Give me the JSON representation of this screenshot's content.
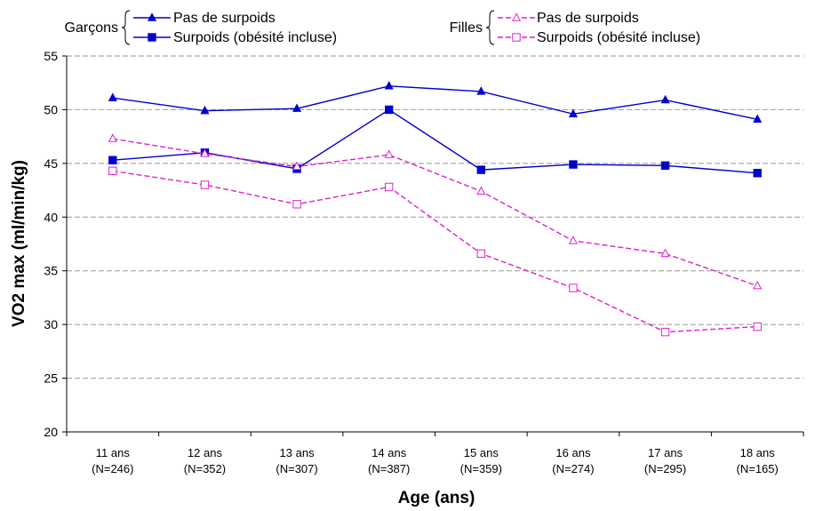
{
  "chart_data": {
    "type": "line",
    "title": "",
    "xlabel": "Age (ans)",
    "ylabel": "VO2 max (ml/min/kg)",
    "ylim": [
      20,
      55
    ],
    "yticks": [
      20,
      25,
      30,
      35,
      40,
      45,
      50,
      55
    ],
    "grid": true,
    "categories": [
      {
        "age": "11 ans",
        "n": "(N=246)"
      },
      {
        "age": "12 ans",
        "n": "(N=352)"
      },
      {
        "age": "13 ans",
        "n": "(N=307)"
      },
      {
        "age": "14 ans",
        "n": "(N=387)"
      },
      {
        "age": "15 ans",
        "n": "(N=359)"
      },
      {
        "age": "16 ans",
        "n": "(N=274)"
      },
      {
        "age": "17 ans",
        "n": "(N=295)"
      },
      {
        "age": "18 ans",
        "n": "(N=165)"
      }
    ],
    "legend_groups": [
      {
        "group": "Garçons",
        "items": [
          "Pas de surpoids",
          "Surpoids (obésité incluse)"
        ]
      },
      {
        "group": "Filles",
        "items": [
          "Pas de surpoids",
          "Surpoids (obésité incluse)"
        ]
      }
    ],
    "series": [
      {
        "name": "Pas de surpoids",
        "group": "Garçons",
        "color": "#0000cc",
        "dash": "solid",
        "marker": "triangle-filled",
        "values": [
          51.1,
          49.9,
          50.1,
          52.2,
          51.7,
          49.6,
          50.9,
          49.1
        ]
      },
      {
        "name": "Surpoids (obésité incluse)",
        "group": "Garçons",
        "color": "#0000cc",
        "dash": "solid",
        "marker": "square-filled",
        "values": [
          45.3,
          46.0,
          44.5,
          50.0,
          44.4,
          44.9,
          44.8,
          44.1
        ]
      },
      {
        "name": "Pas de surpoids",
        "group": "Filles",
        "color": "#e020c8",
        "dash": "dashed",
        "marker": "triangle-open",
        "values": [
          47.3,
          45.9,
          44.7,
          45.8,
          42.4,
          37.8,
          36.6,
          33.6
        ]
      },
      {
        "name": "Surpoids (obésité incluse)",
        "group": "Filles",
        "color": "#e020c8",
        "dash": "dashed",
        "marker": "square-open",
        "values": [
          44.3,
          43.0,
          41.2,
          42.8,
          36.6,
          33.4,
          29.3,
          29.8
        ]
      }
    ]
  }
}
